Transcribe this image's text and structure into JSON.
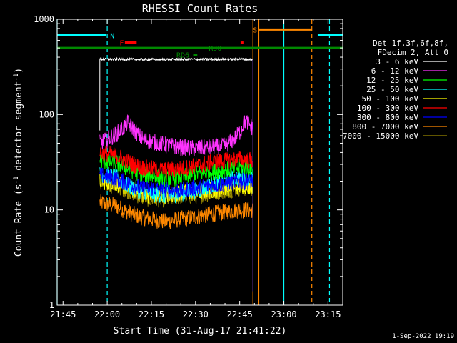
{
  "chart_data": {
    "type": "line",
    "title": "RHESSI Count Rates",
    "xlabel": "Start Time (31-Aug-17 21:41:22)",
    "ylabel_main": "Count Rate (s",
    "ylabel_sup": "-1",
    "ylabel_tail": " detector segment",
    "ylabel_close": ")",
    "y_scale": "log",
    "ylim": [
      1,
      1000
    ],
    "xlim_minutes": [
      -2,
      95
    ],
    "x_ticks": [
      {
        "label": "21:45",
        "minute": 0
      },
      {
        "label": "22:00",
        "minute": 15
      },
      {
        "label": "22:15",
        "minute": 30
      },
      {
        "label": "22:30",
        "minute": 45
      },
      {
        "label": "22:45",
        "minute": 60
      },
      {
        "label": "23:00",
        "minute": 75
      },
      {
        "label": "23:15",
        "minute": 90
      }
    ],
    "y_ticks": [
      {
        "label": "1",
        "value": 1
      },
      {
        "label": "10",
        "value": 10
      },
      {
        "label": "100",
        "value": 100
      },
      {
        "label": "1000",
        "value": 1000
      }
    ],
    "legend_header": [
      "Det 1f,3f,6f,8f,",
      "FDecim 2, Att 0"
    ],
    "legend_placement": "right",
    "series": [
      {
        "name": "3 - 6 keV",
        "color": "#ffffff",
        "start": 12.5,
        "end": 64.5,
        "points": [
          [
            12.5,
            380
          ],
          [
            20,
            380
          ],
          [
            30,
            378
          ],
          [
            40,
            380
          ],
          [
            50,
            380
          ],
          [
            60,
            382
          ],
          [
            64.5,
            378
          ]
        ]
      },
      {
        "name": "6 - 12 keV",
        "color": "#ff33ff",
        "start": 12.5,
        "end": 64.5,
        "points": [
          [
            12.5,
            50
          ],
          [
            15,
            55
          ],
          [
            18,
            62
          ],
          [
            20,
            70
          ],
          [
            22,
            82
          ],
          [
            24,
            70
          ],
          [
            27,
            55
          ],
          [
            30,
            52
          ],
          [
            35,
            48
          ],
          [
            40,
            45
          ],
          [
            45,
            44
          ],
          [
            50,
            45
          ],
          [
            55,
            47
          ],
          [
            58,
            55
          ],
          [
            60,
            65
          ],
          [
            61,
            75
          ],
          [
            62,
            85
          ],
          [
            63,
            80
          ],
          [
            64.5,
            72
          ]
        ]
      },
      {
        "name": "12 - 25 keV",
        "color": "#00ff00",
        "start": 12.5,
        "end": 64.5,
        "points": [
          [
            12.5,
            33
          ],
          [
            18,
            31
          ],
          [
            22,
            27
          ],
          [
            26,
            24
          ],
          [
            30,
            23
          ],
          [
            35,
            21
          ],
          [
            40,
            22
          ],
          [
            45,
            24
          ],
          [
            50,
            25
          ],
          [
            55,
            26
          ],
          [
            60,
            28
          ],
          [
            64.5,
            28
          ]
        ]
      },
      {
        "name": "25 - 50 keV",
        "color": "#00ffff",
        "start": 12.5,
        "end": 64.5,
        "points": [
          [
            12.5,
            24
          ],
          [
            18,
            22
          ],
          [
            22,
            18
          ],
          [
            26,
            16
          ],
          [
            30,
            15
          ],
          [
            35,
            14
          ],
          [
            40,
            15
          ],
          [
            45,
            16
          ],
          [
            50,
            18
          ],
          [
            55,
            20
          ],
          [
            60,
            22
          ],
          [
            64.5,
            22
          ]
        ]
      },
      {
        "name": "50 - 100 keV",
        "color": "#ffff00",
        "start": 12.5,
        "end": 64.5,
        "points": [
          [
            12.5,
            20
          ],
          [
            18,
            19
          ],
          [
            22,
            17
          ],
          [
            26,
            15
          ],
          [
            30,
            14
          ],
          [
            35,
            14
          ],
          [
            40,
            15
          ],
          [
            45,
            15
          ],
          [
            50,
            16
          ],
          [
            55,
            17
          ],
          [
            60,
            18
          ],
          [
            64.5,
            18
          ]
        ]
      },
      {
        "name": "100 - 300 keV",
        "color": "#ff0000",
        "start": 12.5,
        "end": 64.5,
        "points": [
          [
            12.5,
            40
          ],
          [
            18,
            37
          ],
          [
            22,
            32
          ],
          [
            26,
            28
          ],
          [
            30,
            27
          ],
          [
            35,
            26
          ],
          [
            40,
            27
          ],
          [
            45,
            29
          ],
          [
            50,
            31
          ],
          [
            55,
            33
          ],
          [
            60,
            34
          ],
          [
            64.5,
            33
          ]
        ]
      },
      {
        "name": "300 - 800 keV",
        "color": "#0000ff",
        "start": 12.5,
        "end": 64.5,
        "points": [
          [
            12.5,
            23
          ],
          [
            18,
            21
          ],
          [
            22,
            19
          ],
          [
            26,
            17
          ],
          [
            30,
            17
          ],
          [
            35,
            16
          ],
          [
            40,
            16
          ],
          [
            45,
            17
          ],
          [
            50,
            18
          ],
          [
            55,
            19
          ],
          [
            60,
            20
          ],
          [
            64.5,
            20
          ]
        ]
      },
      {
        "name": "800 - 7000 keV",
        "color": "#ff8800",
        "start": 12.5,
        "end": 64.5,
        "points": [
          [
            12.5,
            12
          ],
          [
            18,
            11
          ],
          [
            22,
            9.5
          ],
          [
            26,
            8.5
          ],
          [
            30,
            8
          ],
          [
            35,
            7.5
          ],
          [
            40,
            8
          ],
          [
            45,
            8.5
          ],
          [
            50,
            9
          ],
          [
            55,
            9.5
          ],
          [
            60,
            10
          ],
          [
            64.5,
            10
          ]
        ]
      },
      {
        "name": "7000 - 15000 keV",
        "color": "#998800",
        "start": 12.5,
        "end": 64.5,
        "points": [
          [
            12.5,
            19
          ],
          [
            18,
            18
          ],
          [
            22,
            16
          ],
          [
            26,
            14
          ],
          [
            30,
            13
          ],
          [
            35,
            13
          ],
          [
            40,
            14
          ],
          [
            45,
            14
          ],
          [
            50,
            15
          ],
          [
            55,
            16
          ],
          [
            60,
            17
          ],
          [
            64.5,
            17
          ]
        ]
      }
    ],
    "flag_bars": [
      {
        "label": "N",
        "color": "#00ffff",
        "segments": [
          [
            -2,
            14.5
          ],
          [
            86.5,
            95
          ]
        ],
        "level": 680,
        "label_minute": 16
      },
      {
        "label": "F",
        "color": "#ff0000",
        "segments": [
          [
            21,
            25
          ],
          [
            60.3,
            61.5
          ]
        ],
        "level": 570,
        "label_minute": 19.2
      },
      {
        "label": "S",
        "color": "#ff8800",
        "segments": [
          [
            66.5,
            84.5
          ]
        ],
        "level": 780,
        "label_minute": 64.5
      },
      {
        "label": "RD0",
        "color": "#008800",
        "segments": [
          [
            -2,
            95
          ]
        ],
        "level": 500,
        "label_minute": 49.5
      },
      {
        "label": "RD6",
        "color": "#008800",
        "segments": [
          [
            44.2,
            45.6
          ]
        ],
        "level": 425,
        "label_minute": 38.5
      }
    ],
    "vertical_lines": [
      {
        "minute": -2,
        "color": "#00ffff",
        "style": "solid"
      },
      {
        "minute": 15,
        "color": "#00ffff",
        "style": "dashed"
      },
      {
        "minute": 64.5,
        "color": "#ff8800",
        "style": "solid"
      },
      {
        "minute": 66.5,
        "color": "#ff8800",
        "style": "solid"
      },
      {
        "minute": 75,
        "color": "#00ffff",
        "style": "solid"
      },
      {
        "minute": 84.5,
        "color": "#ff8800",
        "style": "dashed"
      },
      {
        "minute": 90.5,
        "color": "#00ffff",
        "style": "dashed"
      }
    ]
  },
  "footer": {
    "timestamp": "1-Sep-2022 19:19"
  }
}
